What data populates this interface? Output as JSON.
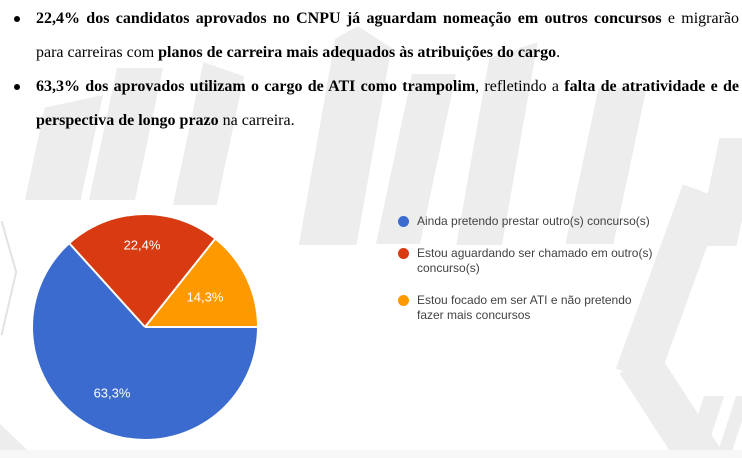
{
  "document": {
    "bullets": [
      {
        "segments": [
          {
            "text": "22,4% dos candidatos aprovados no CNPU já aguardam nomeação em outros concursos",
            "bold": true
          },
          {
            "text": " e migrarão para carreiras com ",
            "bold": false
          },
          {
            "text": "planos de carreira mais adequados às atribuições do cargo",
            "bold": true
          },
          {
            "text": ".",
            "bold": false
          }
        ]
      },
      {
        "segments": [
          {
            "text": "63,3% dos aprovados utilizam o cargo de ATI como trampolim",
            "bold": true
          },
          {
            "text": ", refletindo a ",
            "bold": false
          },
          {
            "text": "falta de atratividade e de perspectiva de longo prazo",
            "bold": true
          },
          {
            "text": " na carreira.",
            "bold": false
          }
        ]
      }
    ]
  },
  "chart_data": {
    "type": "pie",
    "start_angle_deg_from_top_clockwise": 90,
    "direction": "clockwise",
    "legend_position": "right",
    "label_color": "#ffffff",
    "slices": [
      {
        "label": "Ainda pretendo prestar outro(s) concurso(s)",
        "value_pct": 63.3,
        "display": "63,3%",
        "color": "#3b6bce"
      },
      {
        "label": "Estou aguardando ser chamado em outro(s) concurso(s)",
        "value_pct": 22.4,
        "display": "22,4%",
        "color": "#d83a12"
      },
      {
        "label": "Estou focado em ser ATI e não pretendo fazer mais concursos",
        "value_pct": 14.3,
        "display": "14,3%",
        "color": "#ff9900"
      }
    ]
  },
  "colors": {
    "background": "#ffffff",
    "text": "#000000",
    "legend_text": "#424242",
    "watermark": "#ededed"
  }
}
